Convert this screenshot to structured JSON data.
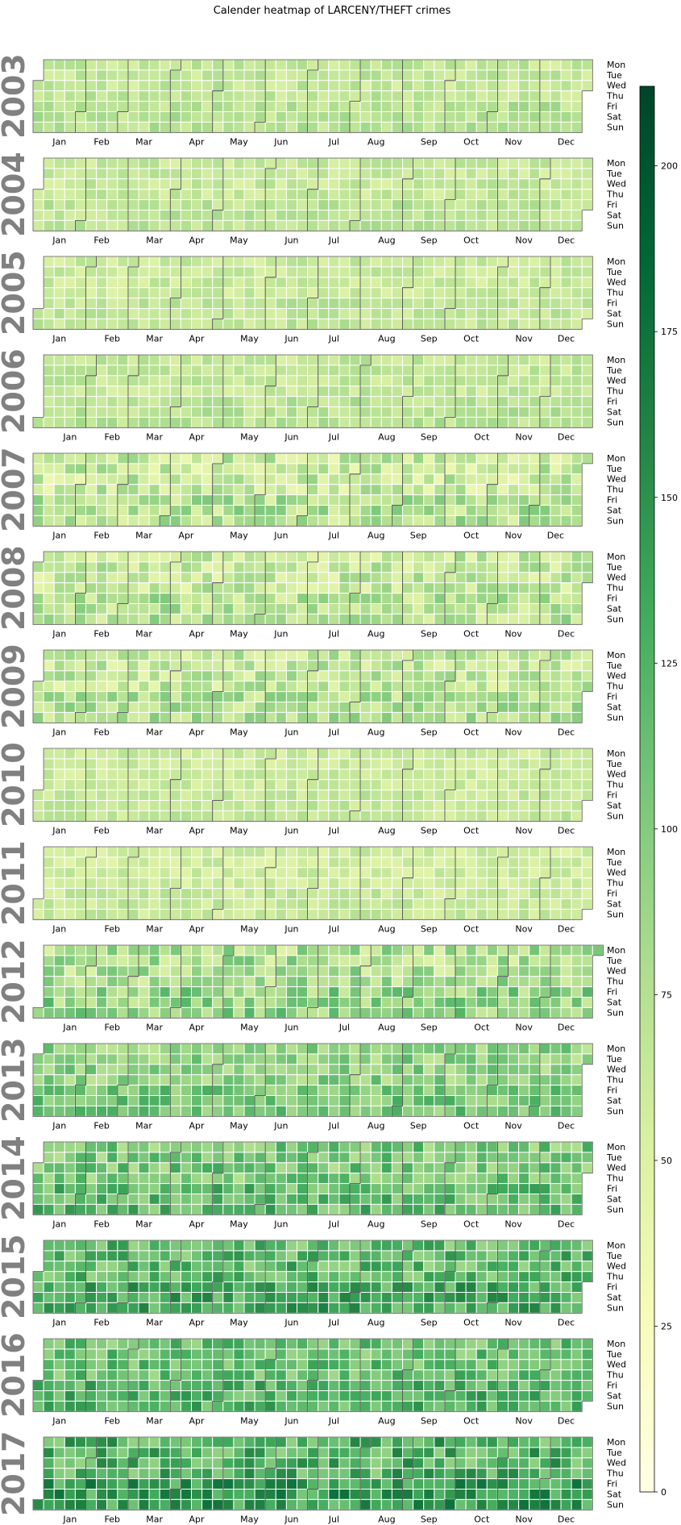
{
  "chart_data": {
    "type": "heatmap",
    "title": "Calender heatmap of LARCENY/THEFT crimes",
    "years": [
      "2003",
      "2004",
      "2005",
      "2006",
      "2007",
      "2008",
      "2009",
      "2010",
      "2011",
      "2012",
      "2013",
      "2014",
      "2015",
      "2016",
      "2017"
    ],
    "months": [
      "Jan",
      "Feb",
      "Mar",
      "Apr",
      "May",
      "Jun",
      "Jul",
      "Aug",
      "Sep",
      "Oct",
      "Nov",
      "Dec"
    ],
    "weekdays": [
      "Mon",
      "Tue",
      "Wed",
      "Thu",
      "Fri",
      "Sat",
      "Sun"
    ],
    "approx_mean_daily_count_by_year": [
      66,
      64,
      62,
      66,
      64,
      64,
      66,
      60,
      58,
      78,
      94,
      104,
      118,
      112,
      126
    ],
    "approx_daily_count_range_by_year": [
      [
        40,
        95
      ],
      [
        40,
        90
      ],
      [
        38,
        88
      ],
      [
        40,
        92
      ],
      [
        8,
        110
      ],
      [
        10,
        105
      ],
      [
        5,
        100
      ],
      [
        40,
        85
      ],
      [
        35,
        85
      ],
      [
        45,
        160
      ],
      [
        55,
        150
      ],
      [
        55,
        165
      ],
      [
        60,
        175
      ],
      [
        60,
        160
      ],
      [
        75,
        205
      ]
    ],
    "colorbar": {
      "min": 0,
      "max": 212,
      "ticks": [
        0,
        25,
        50,
        75,
        100,
        125,
        150,
        175,
        200
      ],
      "colormap": "YlGn",
      "colors": [
        "#ffffe5",
        "#f7fcb9",
        "#d9f0a3",
        "#addd8e",
        "#78c679",
        "#41ab5d",
        "#238443",
        "#006837",
        "#004529"
      ]
    }
  }
}
